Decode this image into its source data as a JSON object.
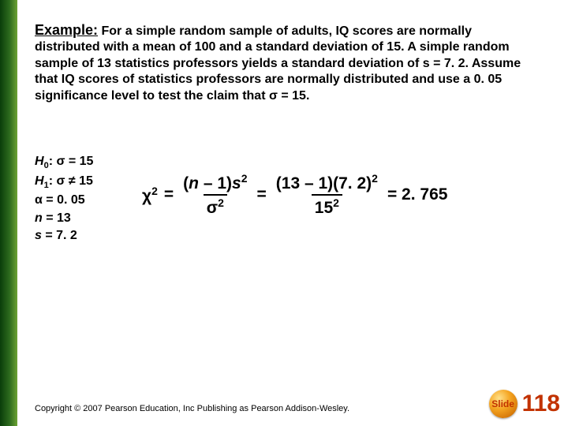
{
  "title_label": "Example:",
  "body_text": "For a simple random sample of adults, IQ scores are normally distributed with a mean of 100 and a standard deviation of 15.  A simple random sample of 13 statistics professors yields a standard deviation of s = 7. 2.  Assume that IQ scores of statistics professors are normally distributed and use a 0. 05 significance level to test the claim that σ = 15.",
  "given": {
    "h0": {
      "label": "H",
      "sub": "0",
      "rest": ":  σ = 15"
    },
    "h1": {
      "label": "H",
      "sub": "1",
      "rest": ":  σ ≠ 15"
    },
    "alpha": "α = 0. 05",
    "n": {
      "label": "n",
      "rest": " = 13"
    },
    "s": {
      "label": "s",
      "rest": " = 7. 2"
    }
  },
  "formula": {
    "chi_sym": "χ",
    "chi_sup": "2",
    "eq1": "=",
    "num1_a": "(",
    "num1_b": "n",
    "num1_c": " – 1)",
    "num1_d": "s",
    "num1_sup": "2",
    "den1_a": "σ",
    "den1_sup": "2",
    "eq2": "=",
    "num2": "(13 – 1)(7. 2)",
    "num2_sup": "2",
    "den2": "15",
    "den2_sup": "2",
    "eq3": "= 2. 765"
  },
  "copyright": "Copyright © 2007 Pearson Education, Inc Publishing as Pearson Addison-Wesley.",
  "footer": {
    "badge": "Slide",
    "number": "118"
  },
  "colors": {
    "accent_red": "#c23200",
    "strip_gradient": [
      "#0a3d0a",
      "#2d6b1e",
      "#6da334"
    ]
  }
}
